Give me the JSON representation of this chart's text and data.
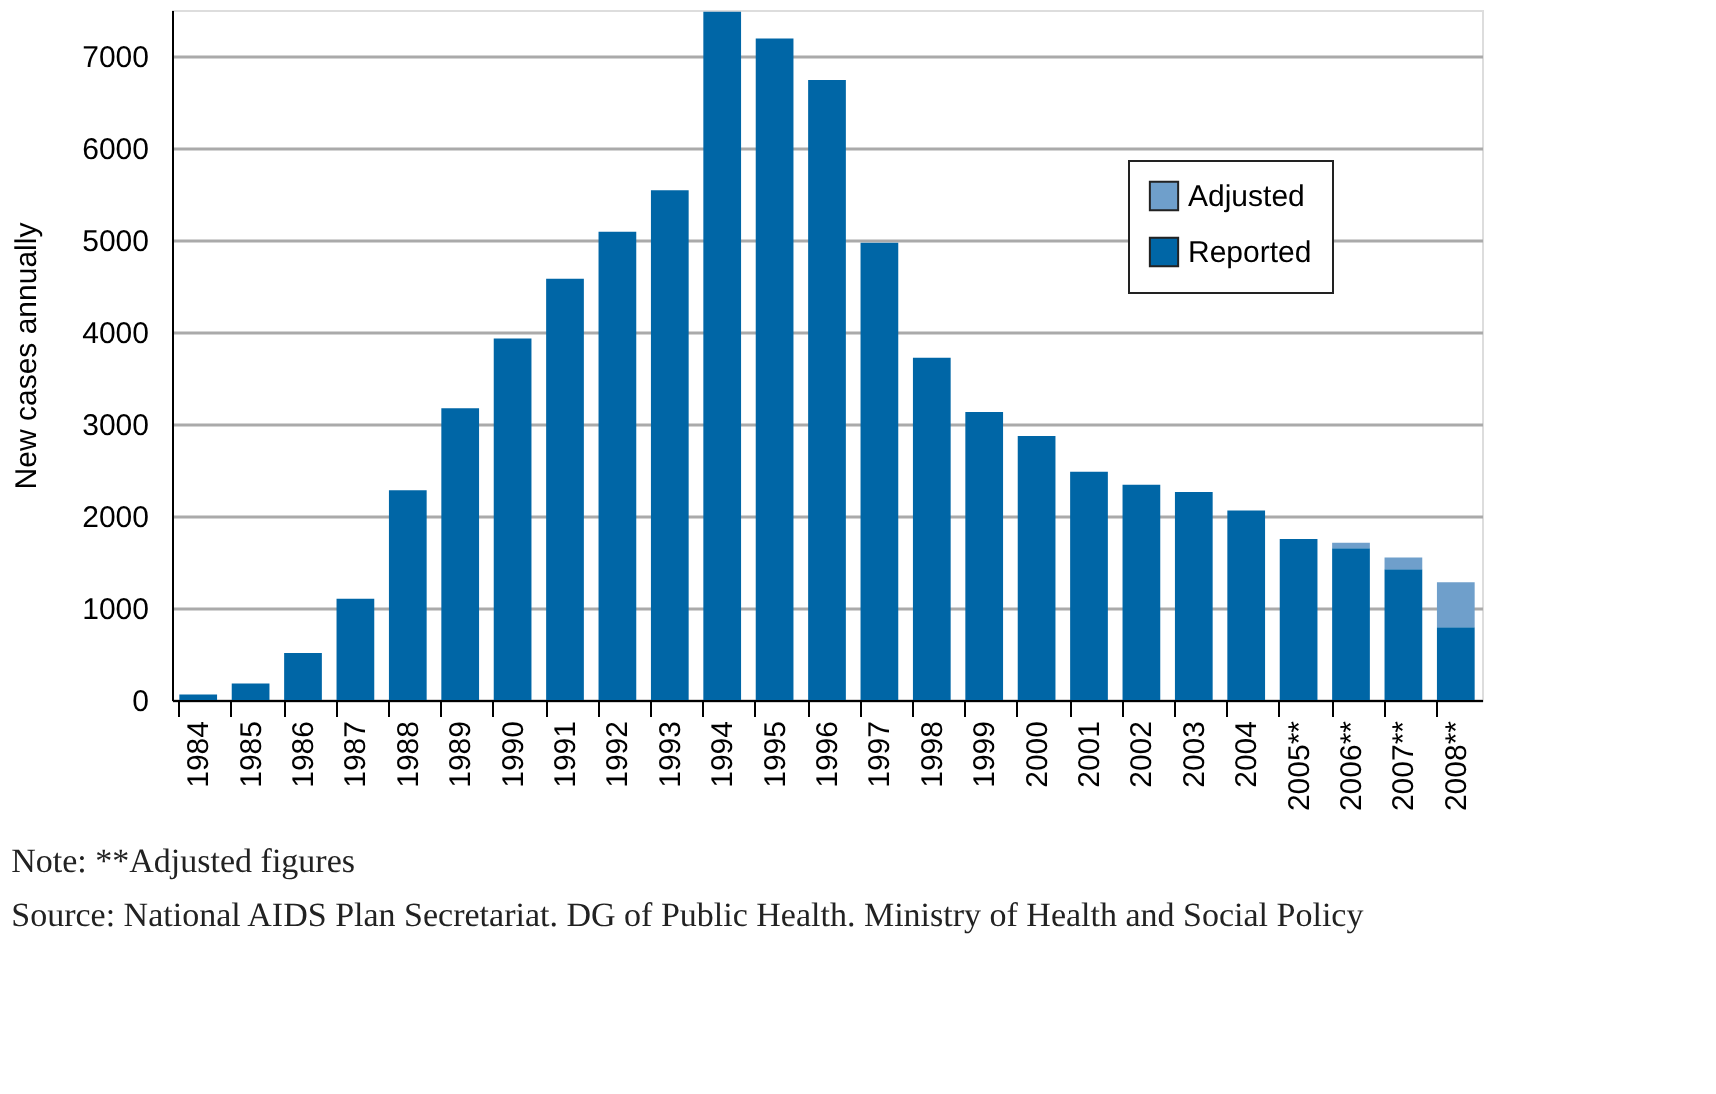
{
  "chart_data": {
    "type": "bar",
    "stacked": true,
    "ylabel": "New cases annually",
    "categories": [
      "1984",
      "1985",
      "1986",
      "1987",
      "1988",
      "1989",
      "1990",
      "1991",
      "1992",
      "1993",
      "1994",
      "1995",
      "1996",
      "1997",
      "1998",
      "1999",
      "2000",
      "2001",
      "2002",
      "2003",
      "2004",
      "2005**",
      "2006**",
      "2007**",
      "2008**"
    ],
    "series": [
      {
        "name": "Reported",
        "color": "#0066a6",
        "values": [
          60,
          180,
          510,
          1100,
          2280,
          3170,
          3930,
          4580,
          5090,
          5540,
          7480,
          7190,
          6740,
          4970,
          3720,
          3130,
          2870,
          2480,
          2340,
          2260,
          2060,
          1750,
          1650,
          1420,
          790
        ]
      },
      {
        "name": "Adjusted",
        "color": "#6f9fcb",
        "values": [
          null,
          null,
          null,
          null,
          null,
          null,
          null,
          null,
          null,
          null,
          null,
          null,
          null,
          null,
          null,
          null,
          null,
          null,
          null,
          null,
          null,
          null,
          60,
          130,
          490
        ]
      }
    ],
    "ylim": [
      0,
      7500
    ],
    "yticks": [
      0,
      1000,
      2000,
      3000,
      4000,
      5000,
      6000,
      7000
    ],
    "grid": "y",
    "legend": "top right",
    "annotations": [
      "Note: **Adjusted figures",
      "Source: National AIDS Plan Secretariat. DG of Public Health. Ministry of Health and Social Policy"
    ]
  }
}
